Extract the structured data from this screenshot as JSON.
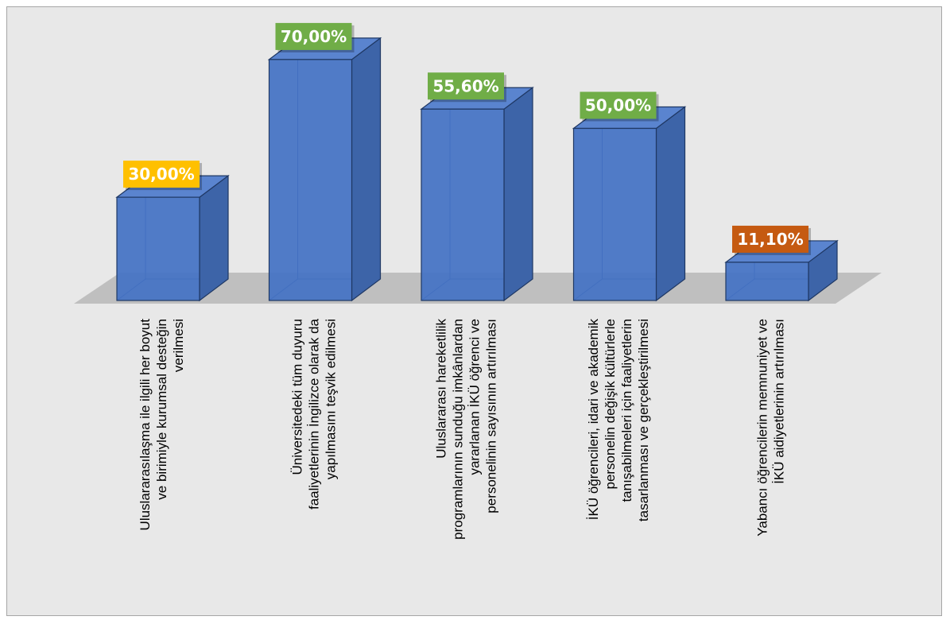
{
  "chart_data": {
    "type": "bar",
    "style": "3d",
    "title": "",
    "xlabel": "",
    "ylabel": "",
    "ylim": [
      0,
      80
    ],
    "grid": false,
    "legend": "none",
    "categories": [
      [
        "Uluslararasılaşma ile ilgili her boyut",
        "ve birimiyle kurumsal desteğin",
        "verilmesi"
      ],
      [
        "Üniversitedeki tüm duyuru",
        "faaliyetlerinin İngilizce olarak da",
        "yapılmasını teşvik edilmesi"
      ],
      [
        "Uluslararası hareketlilik",
        "programlarının sunduğu imkânlardan",
        "yararlanan İKÜ öğrenci ve",
        "personelinin sayısının artırılması"
      ],
      [
        "İKÜ öğrencileri, idari ve akademik",
        "personelin değişik kültürlerle",
        "tanışabilmeleri için faaliyetlerin",
        "tasarlanması ve gerçekleştirilmesi"
      ],
      [
        "Yabancı öğrencilerin memnuniyet ve",
        "İKÜ aidiyetlerinin artırılması"
      ]
    ],
    "values": [
      30.0,
      70.0,
      55.6,
      50.0,
      11.1
    ],
    "value_labels": [
      "30,00%",
      "70,00%",
      "55,60%",
      "50,00%",
      "11,10%"
    ],
    "label_colors": [
      "#ffc000",
      "#70ad47",
      "#70ad47",
      "#70ad47",
      "#c55a11"
    ],
    "bar_color": "#4472c4"
  }
}
